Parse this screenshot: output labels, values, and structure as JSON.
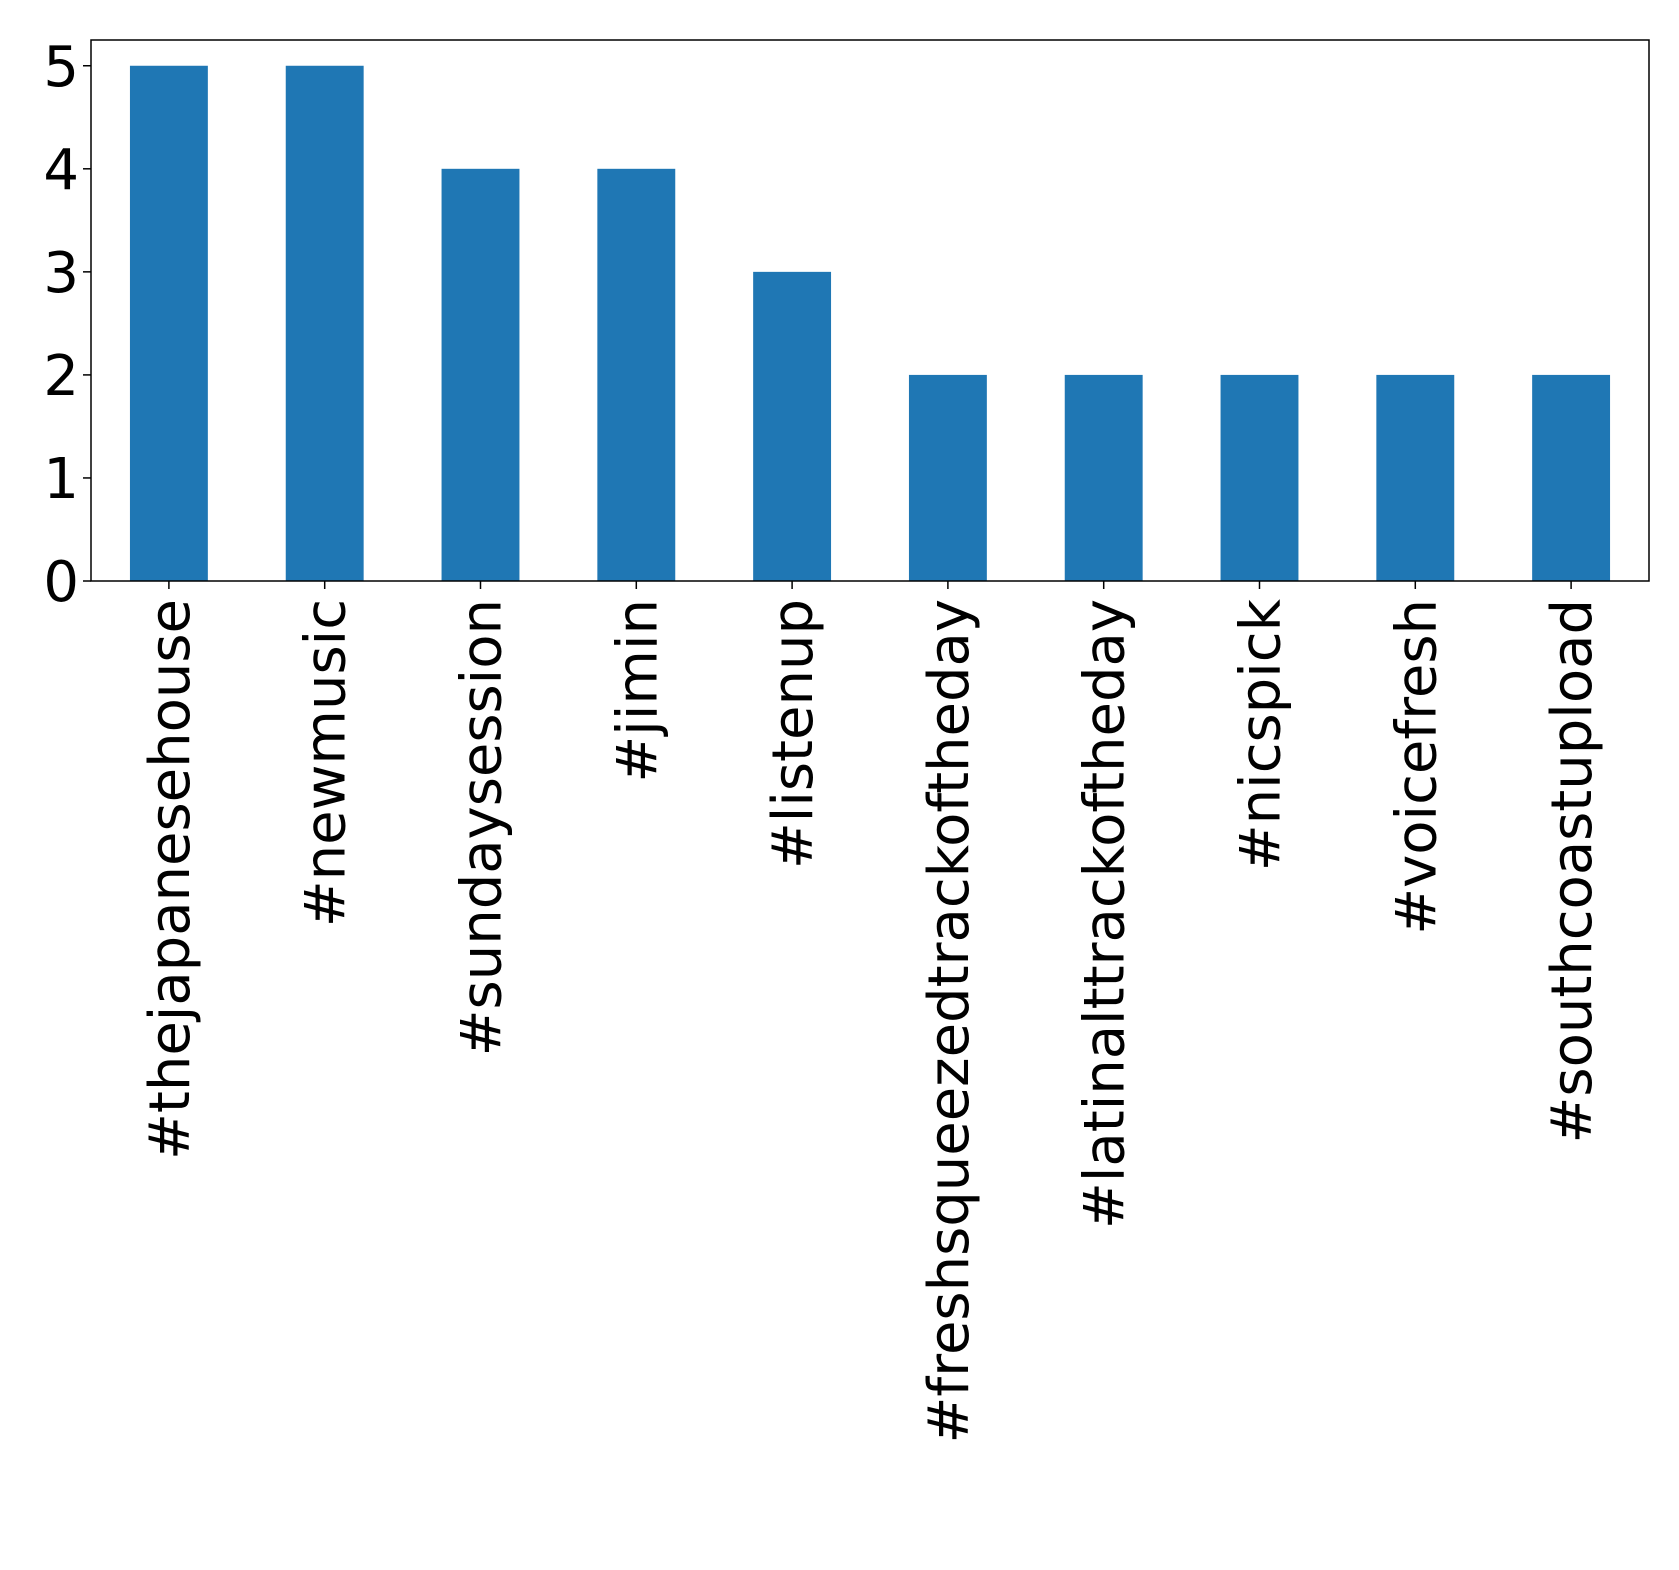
{
  "chart_data": {
    "type": "bar",
    "title": "",
    "xlabel": "",
    "ylabel": "",
    "categories": [
      "#thejapanesehouse",
      "#newmusic",
      "#sundaysession",
      "#jimin",
      "#listenup",
      "#freshsqueezedtrackoftheday",
      "#latinalttrackoftheday",
      "#nicspick",
      "#voicefresh",
      "#southcoastupload"
    ],
    "values": [
      5,
      5,
      4,
      4,
      3,
      2,
      2,
      2,
      2,
      2
    ],
    "ylim": [
      0,
      5.25
    ],
    "yticks": [
      0,
      1,
      2,
      3,
      4,
      5
    ],
    "bar_color": "#1f77b4",
    "grid": false,
    "legend": "none"
  }
}
